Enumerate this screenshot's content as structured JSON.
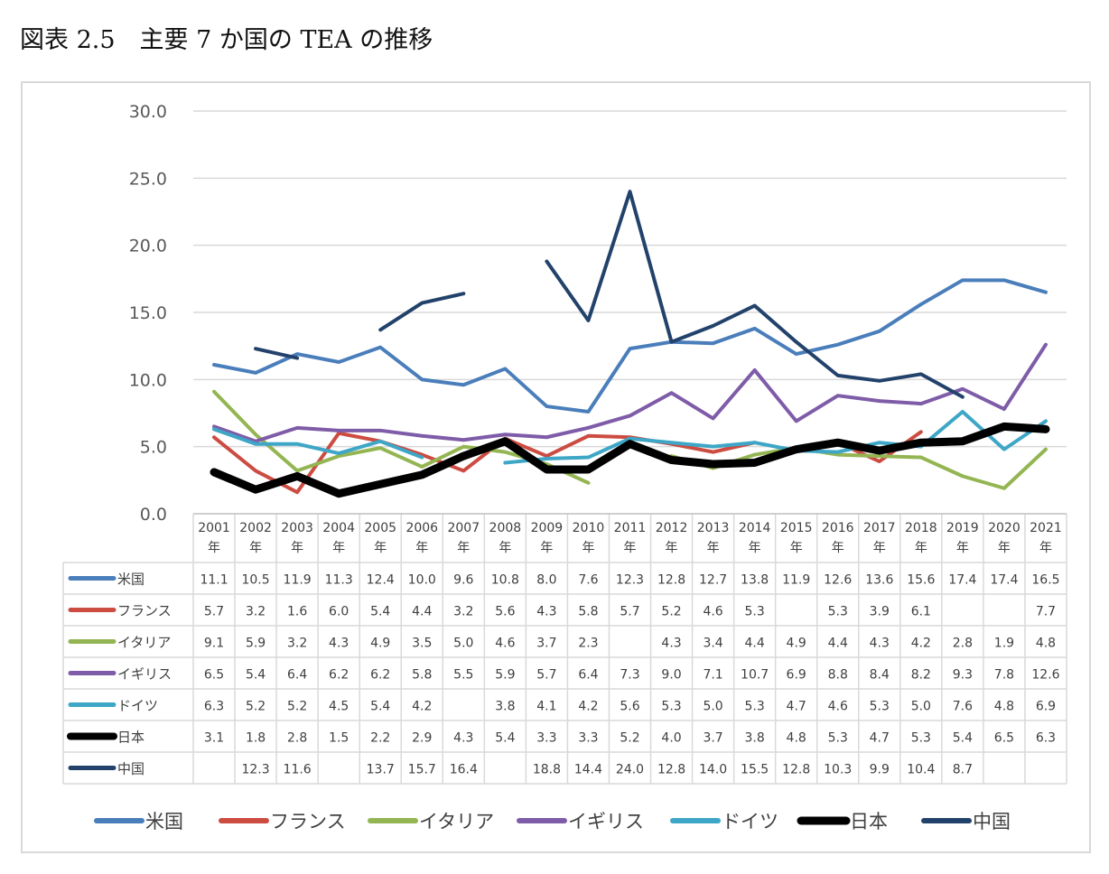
{
  "title": "図表 2.5　主要 7 か国の TEA の推移",
  "chart_data": {
    "type": "line",
    "title": "図表 2.5　主要 7 か国の TEA の推移",
    "xlabel": "",
    "ylabel": "",
    "ylim": [
      0,
      30
    ],
    "yticks": [
      "0.0",
      "5.0",
      "10.0",
      "15.0",
      "20.0",
      "25.0",
      "30.0"
    ],
    "grid": true,
    "legend": "bottom",
    "data_table": true,
    "categories": [
      [
        "2001",
        "年"
      ],
      [
        "2002",
        "年"
      ],
      [
        "2003",
        "年"
      ],
      [
        "2004",
        "年"
      ],
      [
        "2005",
        "年"
      ],
      [
        "2006",
        "年"
      ],
      [
        "2007",
        "年"
      ],
      [
        "2008",
        "年"
      ],
      [
        "2009",
        "年"
      ],
      [
        "2010",
        "年"
      ],
      [
        "2011",
        "年"
      ],
      [
        "2012",
        "年"
      ],
      [
        "2013",
        "年"
      ],
      [
        "2014",
        "年"
      ],
      [
        "2015",
        "年"
      ],
      [
        "2016",
        "年"
      ],
      [
        "2017",
        "年"
      ],
      [
        "2018",
        "年"
      ],
      [
        "2019",
        "年"
      ],
      [
        "2020",
        "年"
      ],
      [
        "2021",
        "年"
      ]
    ],
    "series": [
      {
        "name": "米国",
        "color": "#4a7ebb",
        "width": 4,
        "values": [
          11.1,
          10.5,
          11.9,
          11.3,
          12.4,
          10.0,
          9.6,
          10.8,
          8.0,
          7.6,
          12.3,
          12.8,
          12.7,
          13.8,
          11.9,
          12.6,
          13.6,
          15.6,
          17.4,
          17.4,
          16.5
        ]
      },
      {
        "name": "フランス",
        "color": "#cc4c42",
        "width": 4,
        "values": [
          5.7,
          3.2,
          1.6,
          6.0,
          5.4,
          4.4,
          3.2,
          5.6,
          4.3,
          5.8,
          5.7,
          5.2,
          4.6,
          5.3,
          null,
          5.3,
          3.9,
          6.1,
          null,
          null,
          7.7
        ]
      },
      {
        "name": "イタリア",
        "color": "#93b552",
        "width": 4,
        "values": [
          9.1,
          5.9,
          3.2,
          4.3,
          4.9,
          3.5,
          5.0,
          4.6,
          3.7,
          2.3,
          null,
          4.3,
          3.4,
          4.4,
          4.9,
          4.4,
          4.3,
          4.2,
          2.8,
          1.9,
          4.8
        ]
      },
      {
        "name": "イギリス",
        "color": "#7e5ca8",
        "width": 4,
        "values": [
          6.5,
          5.4,
          6.4,
          6.2,
          6.2,
          5.8,
          5.5,
          5.9,
          5.7,
          6.4,
          7.3,
          9.0,
          7.1,
          10.7,
          6.9,
          8.8,
          8.4,
          8.2,
          9.3,
          7.8,
          12.6
        ]
      },
      {
        "name": "ドイツ",
        "color": "#3ea6c6",
        "width": 4,
        "values": [
          6.3,
          5.2,
          5.2,
          4.5,
          5.4,
          4.2,
          null,
          3.8,
          4.1,
          4.2,
          5.6,
          5.3,
          5.0,
          5.3,
          4.7,
          4.6,
          5.3,
          5.0,
          7.6,
          4.8,
          6.9
        ]
      },
      {
        "name": "日本",
        "color": "#000000",
        "width": 9,
        "values": [
          3.1,
          1.8,
          2.8,
          1.5,
          2.2,
          2.9,
          4.3,
          5.4,
          3.3,
          3.3,
          5.2,
          4.0,
          3.7,
          3.8,
          4.8,
          5.3,
          4.7,
          5.3,
          5.4,
          6.5,
          6.3
        ]
      },
      {
        "name": "中国",
        "color": "#23426b",
        "width": 4,
        "values": [
          null,
          12.3,
          11.6,
          null,
          13.7,
          15.7,
          16.4,
          null,
          18.8,
          14.4,
          24.0,
          12.8,
          14.0,
          15.5,
          12.8,
          10.3,
          9.9,
          10.4,
          8.7,
          null,
          null
        ]
      }
    ]
  }
}
